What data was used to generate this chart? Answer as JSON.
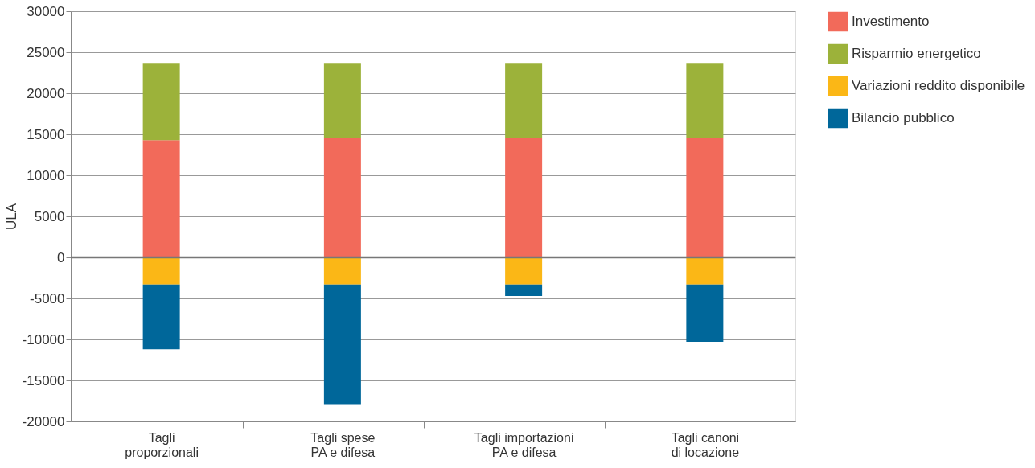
{
  "chart_data": {
    "type": "bar",
    "stacked": true,
    "ylabel": "ULA",
    "categories": [
      "Tagli\nproporzionali",
      "Tagli spese\nPA e difesa",
      "Tagli importazioni\nPA e difesa",
      "Tagli canoni\ndi locazione"
    ],
    "series": [
      {
        "name": "Investimento",
        "color": "#f26a5a",
        "values": [
          14300,
          14500,
          14500,
          14500
        ]
      },
      {
        "name": "Risparmio energetico",
        "color": "#9cb23a",
        "values": [
          9400,
          9200,
          9200,
          9200
        ]
      },
      {
        "name": "Variazioni reddito disponibile",
        "color": "#fbb716",
        "values": [
          -3300,
          -3300,
          -3300,
          -3300
        ]
      },
      {
        "name": "Bilancio pubblico",
        "color": "#00679a",
        "values": [
          -7900,
          -14700,
          -1400,
          -7000
        ]
      }
    ],
    "ylim": [
      -20000,
      30000
    ],
    "yticks": [
      -20000,
      -15000,
      -10000,
      -5000,
      0,
      5000,
      10000,
      15000,
      20000,
      25000,
      30000
    ],
    "grid": "y",
    "legend": "right",
    "ref_lines": [
      {
        "axis": "y",
        "value": 0,
        "color": "#777777"
      }
    ]
  }
}
